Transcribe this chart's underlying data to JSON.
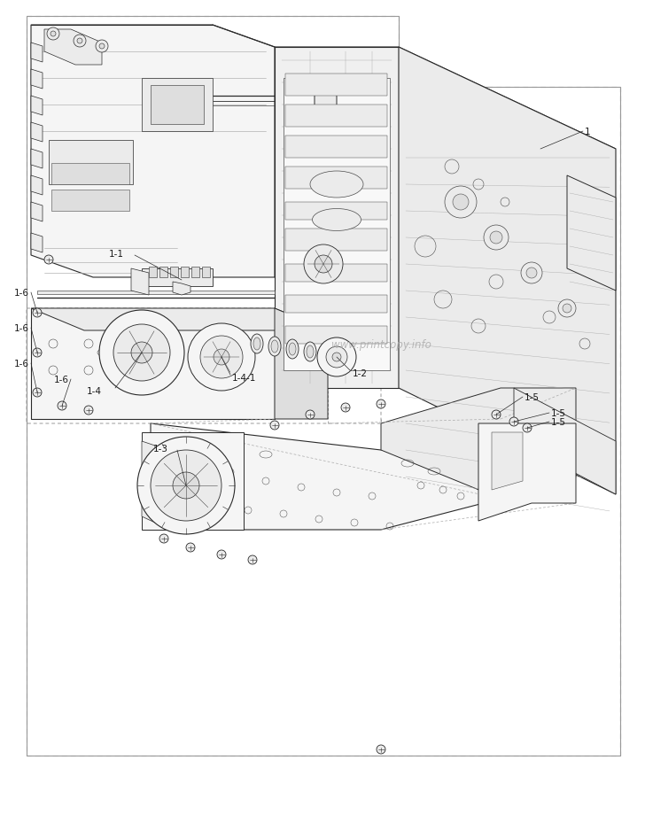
{
  "bg_color": "#ffffff",
  "lc": "#4a4a4a",
  "dc": "#2a2a2a",
  "llc": "#aaaaaa",
  "fc_light": "#f5f5f5",
  "fc_mid": "#ebebeb",
  "fc_dark": "#dedede",
  "watermark": "www.printcopy.info",
  "watermark_color": "#aaaaaa",
  "text_color": "#1a1a1a",
  "figsize": [
    7.28,
    9.29
  ],
  "dpi": 100,
  "border_dash": [
    4,
    3
  ],
  "border_lw": 0.8,
  "part_lw": 0.7,
  "detail_lw": 0.45,
  "label_fs": 7.5
}
